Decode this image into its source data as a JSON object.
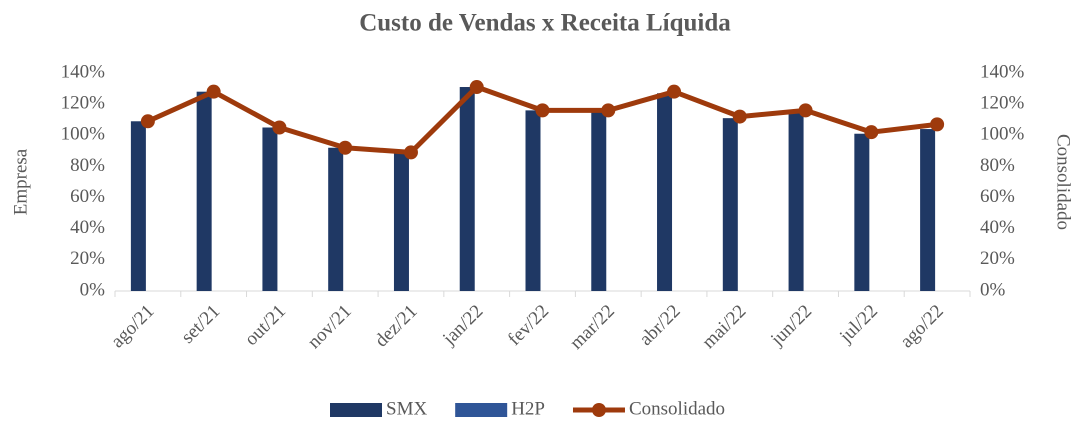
{
  "chart_data": {
    "type": "bar+line",
    "title": "Custo de Vendas x Receita Líquida",
    "y_label": "Empresa",
    "y2_label": "Consolidado",
    "categories": [
      "ago/21",
      "set/21",
      "out/21",
      "nov/21",
      "dez/21",
      "jan/22",
      "fev/22",
      "mar/22",
      "abr/22",
      "mai/22",
      "jun/22",
      "jul/22",
      "ago/22"
    ],
    "series": [
      {
        "name": "SMX",
        "type": "bar",
        "color": "#1f3864",
        "values": [
          109,
          128,
          105,
          92,
          89,
          131,
          116,
          115,
          127,
          111,
          115,
          101,
          104
        ]
      },
      {
        "name": "H2P",
        "type": "bar",
        "color": "#2f5597",
        "values": [
          0,
          0,
          0,
          0,
          0,
          0,
          0,
          0,
          0,
          0,
          0,
          0,
          0
        ]
      },
      {
        "name": "Consolidado",
        "type": "line",
        "axis": "y2",
        "color": "#9e3a0c",
        "values": [
          109,
          128,
          105,
          92,
          89,
          131,
          116,
          116,
          128,
          112,
          116,
          102,
          107
        ]
      }
    ],
    "ylim": [
      0,
      140
    ],
    "yticks": [
      {
        "value": 0,
        "label": "0%"
      },
      {
        "value": 20,
        "label": "20%"
      },
      {
        "value": 40,
        "label": "40%"
      },
      {
        "value": 60,
        "label": "60%"
      },
      {
        "value": 80,
        "label": "80%"
      },
      {
        "value": 100,
        "label": "100%"
      },
      {
        "value": 120,
        "label": "120%"
      },
      {
        "value": 140,
        "label": "140%"
      }
    ],
    "y2lim": [
      0,
      140
    ],
    "y2ticks": [
      {
        "value": 0,
        "label": "0%"
      },
      {
        "value": 20,
        "label": "20%"
      },
      {
        "value": 40,
        "label": "40%"
      },
      {
        "value": 60,
        "label": "60%"
      },
      {
        "value": 80,
        "label": "80%"
      },
      {
        "value": 100,
        "label": "100%"
      },
      {
        "value": 120,
        "label": "120%"
      },
      {
        "value": 140,
        "label": "140%"
      }
    ],
    "legend": "bottom"
  }
}
